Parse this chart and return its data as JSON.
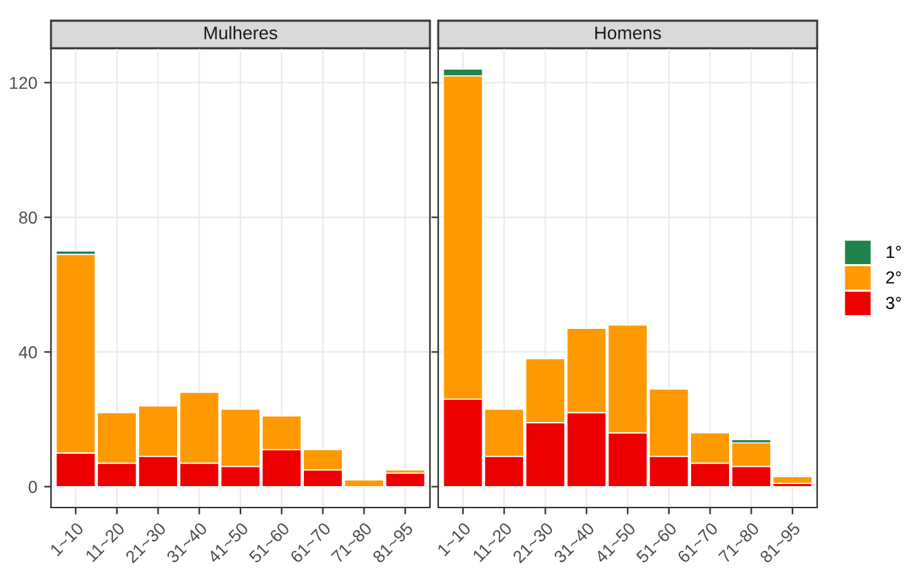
{
  "chart_data": [
    {
      "type": "bar",
      "title": "Mulheres",
      "stacked": true,
      "categories": [
        "1~10",
        "11~20",
        "21~30",
        "31~40",
        "41~50",
        "51~60",
        "61~70",
        "71~80",
        "81~95"
      ],
      "ylim": [
        -6.2,
        130.2
      ],
      "yticks": [
        0,
        40,
        80,
        120
      ],
      "grid": true,
      "series": [
        {
          "color": "#ee0000",
          "values": [
            10,
            7,
            9,
            7,
            6,
            11,
            5,
            null,
            4
          ]
        },
        {
          "color": "#ff9900",
          "values": [
            59,
            15,
            15,
            21,
            17,
            10,
            6,
            2,
            1
          ]
        },
        {
          "color": "#1e8449",
          "values": [
            1,
            null,
            null,
            null,
            null,
            null,
            null,
            null,
            null
          ]
        }
      ]
    },
    {
      "type": "bar",
      "title": "Homens",
      "stacked": true,
      "categories": [
        "1~10",
        "11~20",
        "21~30",
        "31~40",
        "41~50",
        "51~60",
        "61~70",
        "71~80",
        "81~95"
      ],
      "ylim": [
        -6.2,
        130.2
      ],
      "yticks": [
        0,
        40,
        80,
        120
      ],
      "tick_labels": "x",
      "grid": true,
      "legend": "right",
      "series": [
        {
          "name": "3°",
          "color": "#ee0000",
          "values": [
            26,
            9,
            19,
            22,
            16,
            9,
            7,
            6,
            1
          ]
        },
        {
          "name": "2°",
          "color": "#ff9900",
          "values": [
            96,
            14,
            19,
            25,
            32,
            20,
            9,
            7,
            2
          ]
        },
        {
          "name": "1°",
          "color": "#1e8449",
          "values": [
            2,
            null,
            null,
            null,
            null,
            null,
            null,
            1,
            null
          ]
        }
      ]
    }
  ]
}
